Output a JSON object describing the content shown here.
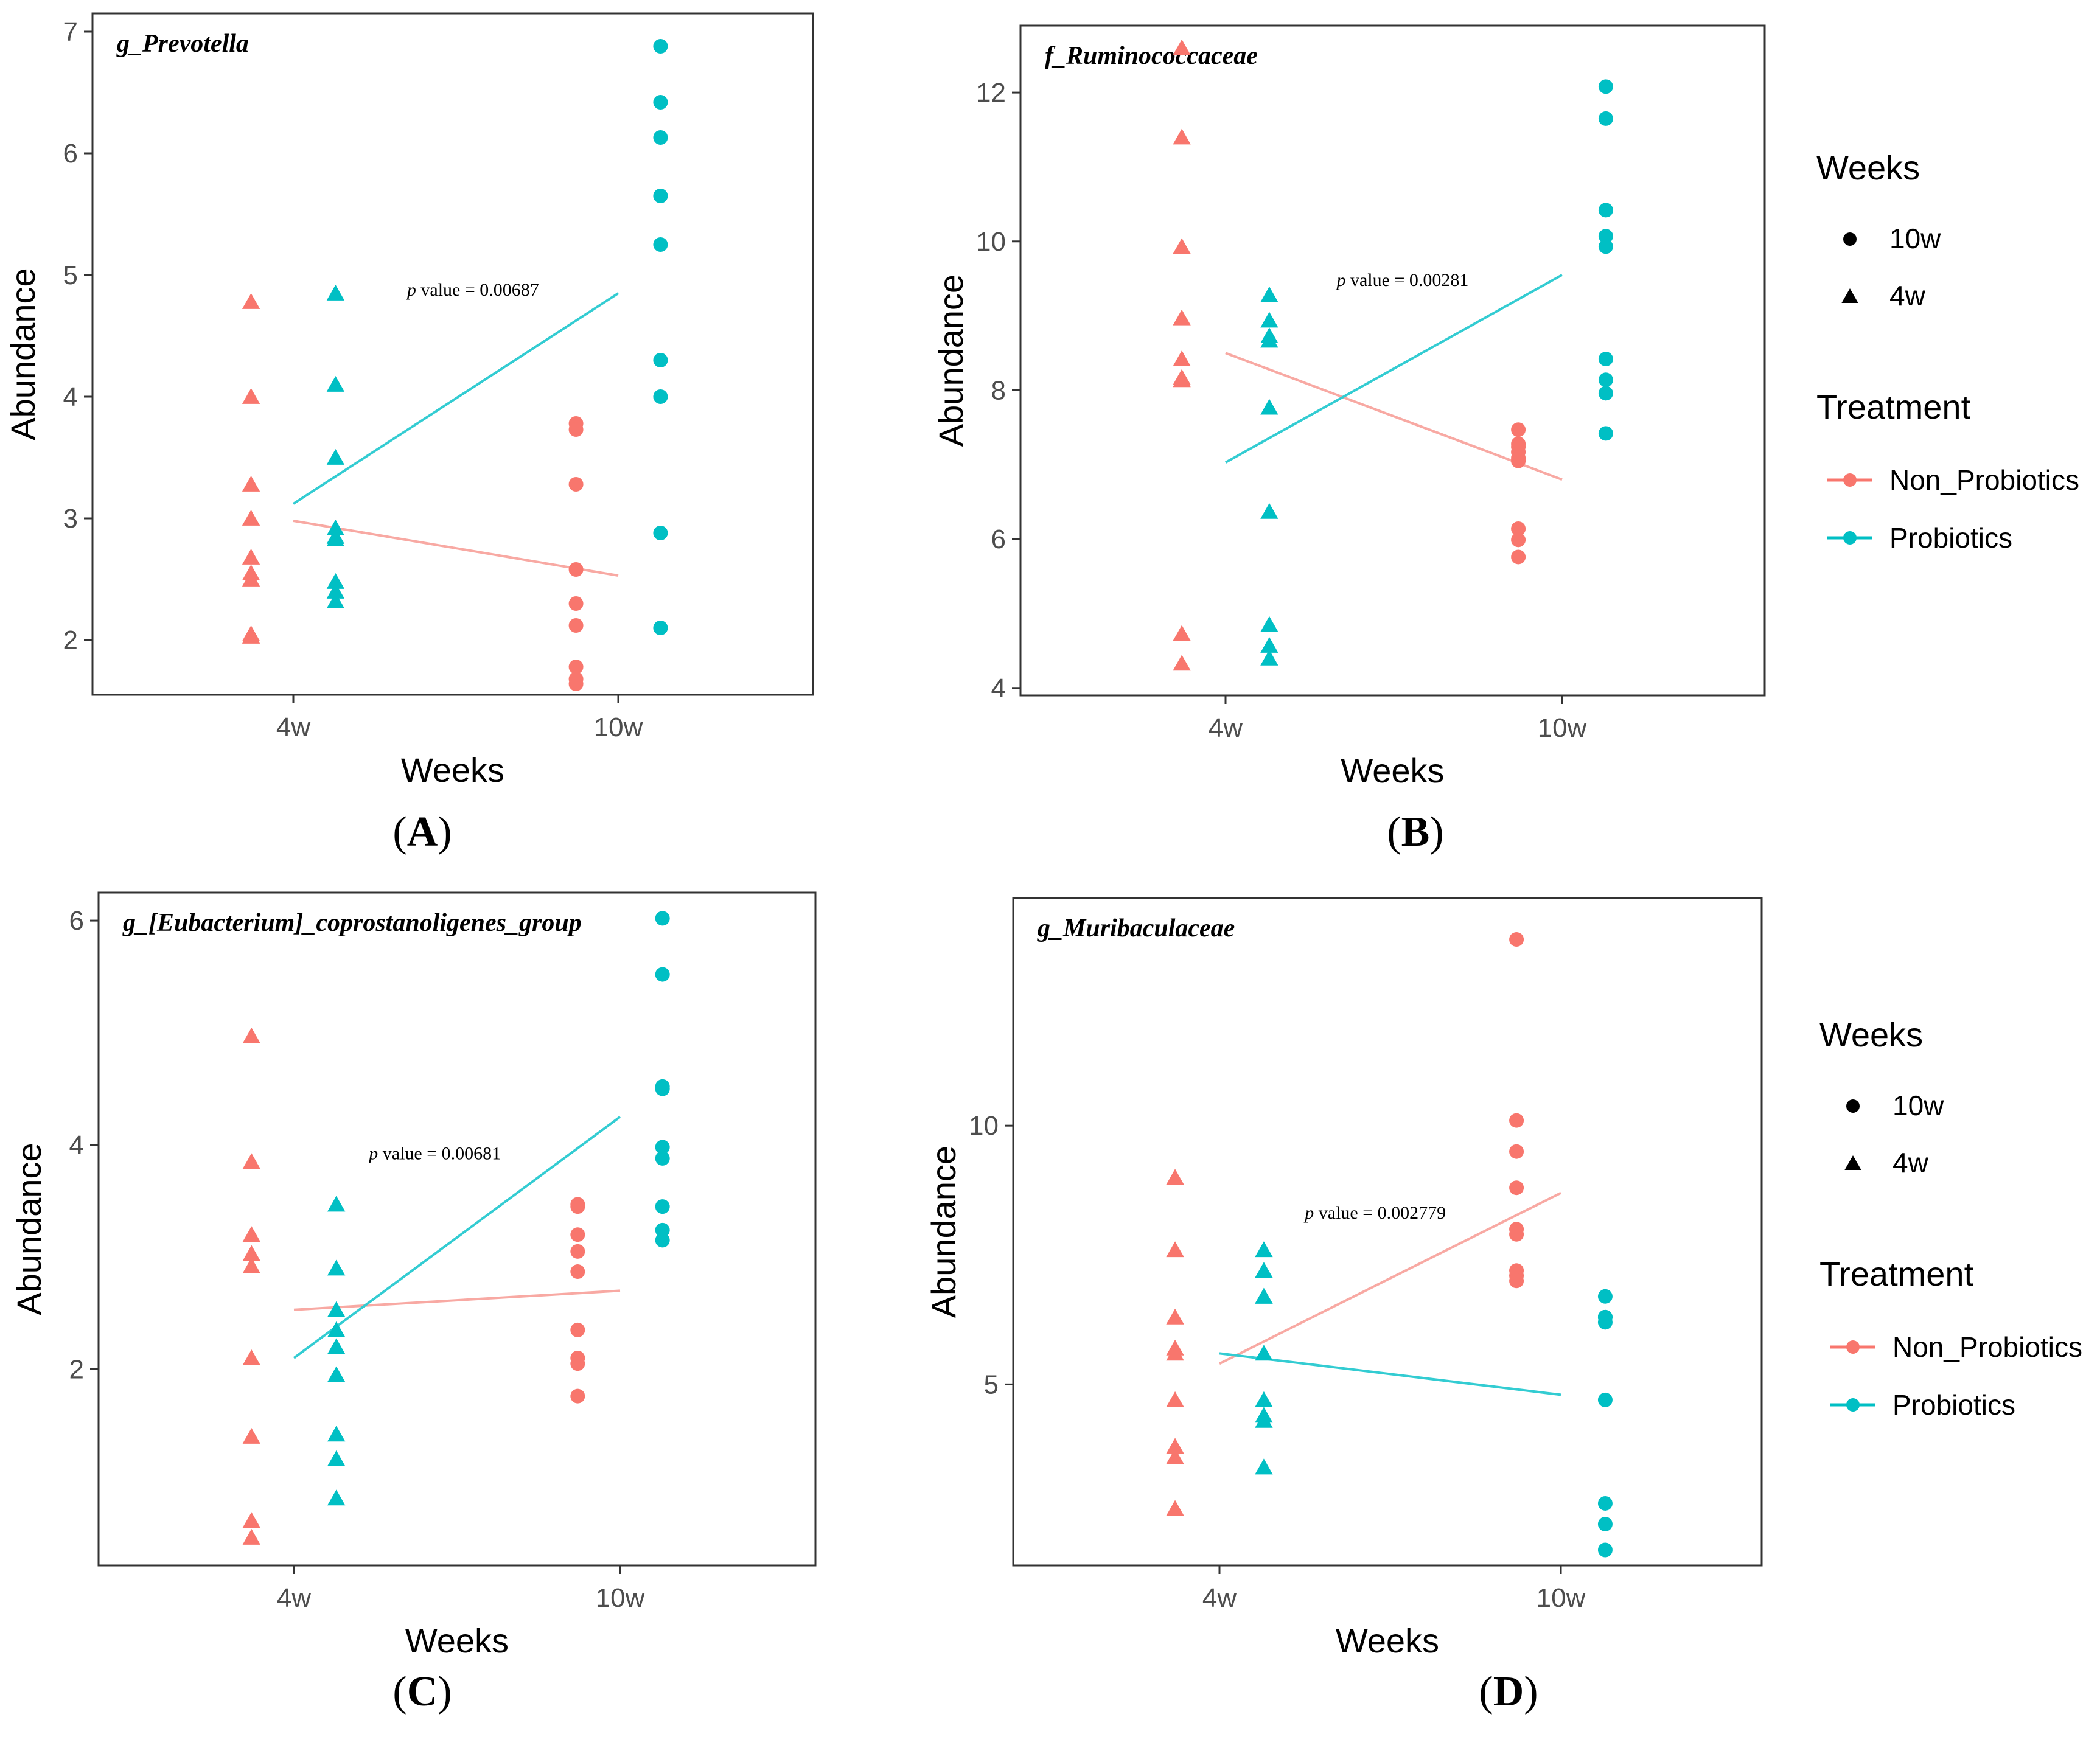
{
  "figure": {
    "panel_labels": [
      "A",
      "B",
      "C",
      "D"
    ],
    "colors": {
      "non_probiotics": "#F8766D",
      "probiotics": "#00BFC4",
      "fit_non_probiotics": "#F8A9A3",
      "fit_probiotics": "#33CCD2",
      "axis": "#333333",
      "tick_text": "#4D4D4D",
      "text": "#000000"
    },
    "legend_weeks_title": "Weeks",
    "legend_weeks_items": [
      "10w",
      "4w"
    ],
    "legend_treatment_title": "Treatment",
    "legend_treatment_items": [
      "Non_Probiotics",
      "Probiotics"
    ]
  },
  "chart_data": [
    {
      "panel": "A",
      "type": "scatter",
      "title": "g_Prevotella",
      "xlabel": "Weeks",
      "ylabel": "Abundance",
      "categories": [
        "4w",
        "10w"
      ],
      "ylim": [
        1.55,
        7.15
      ],
      "yticks": [
        2,
        3,
        4,
        5,
        6,
        7
      ],
      "p_prefix": "p",
      "p_text": " value = 0.00687",
      "p_anchor": {
        "x": 1.35,
        "y": 4.83
      },
      "series": [
        {
          "name": "Non_Probiotics",
          "week": "4w",
          "x": 0.87,
          "values": [
            4.78,
            4.0,
            3.28,
            3.0,
            2.68,
            2.55,
            2.5,
            2.05,
            2.03
          ]
        },
        {
          "name": "Probiotics",
          "week": "4w",
          "x": 1.13,
          "values": [
            4.85,
            4.1,
            3.5,
            2.92,
            2.85,
            2.83,
            2.48,
            2.4,
            2.32
          ]
        },
        {
          "name": "Non_Probiotics",
          "week": "10w",
          "x": 1.87,
          "values": [
            3.78,
            3.73,
            3.28,
            2.58,
            2.3,
            2.12,
            1.78,
            1.68,
            1.64
          ]
        },
        {
          "name": "Probiotics",
          "week": "10w",
          "x": 2.13,
          "values": [
            6.88,
            6.42,
            6.13,
            5.65,
            5.25,
            4.3,
            4.0,
            2.88,
            2.1
          ]
        }
      ],
      "fit_lines": [
        {
          "name": "Non_Probiotics",
          "x": [
            1,
            2
          ],
          "y": [
            2.98,
            2.53
          ]
        },
        {
          "name": "Probiotics",
          "x": [
            1,
            2
          ],
          "y": [
            3.12,
            4.85
          ]
        }
      ]
    },
    {
      "panel": "B",
      "type": "scatter",
      "title": "f_Ruminococcaceae",
      "xlabel": "Weeks",
      "ylabel": "Abundance",
      "categories": [
        "4w",
        "10w"
      ],
      "ylim": [
        3.9,
        12.9
      ],
      "yticks": [
        4,
        6,
        8,
        10,
        12
      ],
      "p_prefix": "p",
      "p_text": " value = 0.00281",
      "p_anchor": {
        "x": 1.33,
        "y": 9.4
      },
      "series": [
        {
          "name": "Non_Probiotics",
          "week": "4w",
          "x": 0.87,
          "values": [
            12.6,
            11.4,
            9.93,
            8.97,
            8.42,
            8.17,
            8.14,
            4.73,
            4.33
          ]
        },
        {
          "name": "Probiotics",
          "week": "4w",
          "x": 1.13,
          "values": [
            9.28,
            8.94,
            8.73,
            8.67,
            7.77,
            6.37,
            4.85,
            4.57,
            4.4
          ]
        },
        {
          "name": "Non_Probiotics",
          "week": "10w",
          "x": 1.87,
          "values": [
            7.47,
            7.28,
            7.24,
            7.17,
            7.09,
            7.05,
            6.14,
            5.99,
            5.76
          ]
        },
        {
          "name": "Probiotics",
          "week": "10w",
          "x": 2.13,
          "values": [
            12.08,
            11.65,
            10.42,
            10.07,
            9.93,
            8.42,
            8.14,
            7.96,
            7.42
          ]
        }
      ],
      "fit_lines": [
        {
          "name": "Non_Probiotics",
          "x": [
            1,
            2
          ],
          "y": [
            8.5,
            6.8
          ]
        },
        {
          "name": "Probiotics",
          "x": [
            1,
            2
          ],
          "y": [
            7.03,
            9.55
          ]
        }
      ]
    },
    {
      "panel": "C",
      "type": "scatter",
      "title": "g_[Eubacterium]_coprostanoligenes_group",
      "xlabel": "Weeks",
      "ylabel": "Abundance",
      "categories": [
        "4w",
        "10w"
      ],
      "ylim": [
        0.25,
        6.25
      ],
      "yticks": [
        2,
        4,
        6
      ],
      "p_prefix": "p",
      "p_text": " value = 0.00681",
      "p_anchor": {
        "x": 1.23,
        "y": 3.87
      },
      "series": [
        {
          "name": "Non_Probiotics",
          "week": "4w",
          "x": 0.87,
          "values": [
            4.97,
            3.85,
            3.2,
            3.03,
            2.92,
            2.1,
            1.4,
            0.65,
            0.5
          ]
        },
        {
          "name": "Probiotics",
          "week": "4w",
          "x": 1.13,
          "values": [
            3.47,
            2.9,
            2.53,
            2.35,
            2.2,
            1.95,
            1.42,
            1.2,
            0.85
          ]
        },
        {
          "name": "Non_Probiotics",
          "week": "10w",
          "x": 1.87,
          "values": [
            3.47,
            3.45,
            3.2,
            3.05,
            2.87,
            2.35,
            2.1,
            2.05,
            1.76
          ]
        },
        {
          "name": "Probiotics",
          "week": "10w",
          "x": 2.13,
          "values": [
            6.02,
            5.52,
            4.52,
            4.5,
            3.98,
            3.88,
            3.45,
            3.24,
            3.15
          ]
        }
      ],
      "fit_lines": [
        {
          "name": "Non_Probiotics",
          "x": [
            1,
            2
          ],
          "y": [
            2.53,
            2.7
          ]
        },
        {
          "name": "Probiotics",
          "x": [
            1,
            2
          ],
          "y": [
            2.1,
            4.25
          ]
        }
      ]
    },
    {
      "panel": "D",
      "type": "scatter",
      "title": "g_Muribaculaceae",
      "xlabel": "Weeks",
      "ylabel": "Abundance",
      "categories": [
        "4w",
        "10w"
      ],
      "ylim": [
        1.5,
        14.4
      ],
      "yticks": [
        5,
        10
      ],
      "p_prefix": "p",
      "p_text": " value = 0.002779",
      "p_anchor": {
        "x": 1.25,
        "y": 8.2
      },
      "series": [
        {
          "name": "Non_Probiotics",
          "week": "4w",
          "x": 0.87,
          "values": [
            9.0,
            7.6,
            6.3,
            5.7,
            5.6,
            4.7,
            3.8,
            3.6,
            2.6
          ]
        },
        {
          "name": "Probiotics",
          "week": "4w",
          "x": 1.13,
          "values": [
            7.6,
            7.2,
            6.7,
            6.7,
            5.6,
            4.7,
            4.4,
            4.3,
            3.4
          ]
        },
        {
          "name": "Non_Probiotics",
          "week": "10w",
          "x": 1.87,
          "values": [
            13.6,
            10.1,
            9.5,
            8.8,
            8.0,
            7.9,
            7.2,
            7.1,
            7.0
          ]
        },
        {
          "name": "Probiotics",
          "week": "10w",
          "x": 2.13,
          "values": [
            6.7,
            6.3,
            6.3,
            6.3,
            6.2,
            4.7,
            2.7,
            2.3,
            1.8
          ]
        }
      ],
      "fit_lines": [
        {
          "name": "Non_Probiotics",
          "x": [
            1,
            2
          ],
          "y": [
            5.4,
            8.7
          ]
        },
        {
          "name": "Probiotics",
          "x": [
            1,
            2
          ],
          "y": [
            5.6,
            4.8
          ]
        }
      ]
    }
  ]
}
